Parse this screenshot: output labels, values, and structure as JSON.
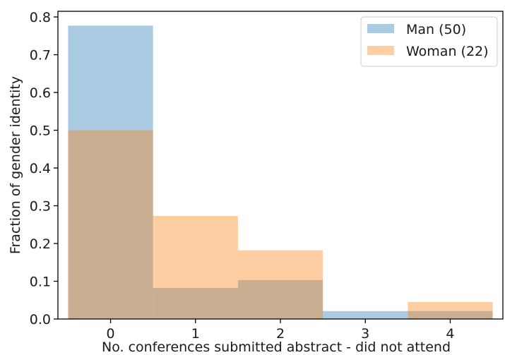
{
  "chart_data": {
    "type": "bar",
    "categories": [
      "0",
      "1",
      "2",
      "3",
      "4"
    ],
    "series": [
      {
        "name": "Man (50)",
        "values": [
          0.777,
          0.082,
          0.103,
          0.021,
          0.021
        ],
        "color": "#1f77b4"
      },
      {
        "name": "Woman (22)",
        "values": [
          0.5,
          0.273,
          0.182,
          0.0,
          0.045
        ],
        "color": "#ff7f0e"
      }
    ],
    "bar_alpha": 0.38,
    "xlabel": "No. conferences submitted abstract - did not attend",
    "ylabel": "Fraction of gender identity",
    "xlim": [
      -0.62,
      4.62
    ],
    "ylim": [
      0.0,
      0.815
    ],
    "yticks": [
      "0.0",
      "0.1",
      "0.2",
      "0.3",
      "0.4",
      "0.5",
      "0.6",
      "0.7",
      "0.8"
    ],
    "xticks": [
      "0",
      "1",
      "2",
      "3",
      "4"
    ],
    "legend_position": "top-right",
    "grid": false
  }
}
